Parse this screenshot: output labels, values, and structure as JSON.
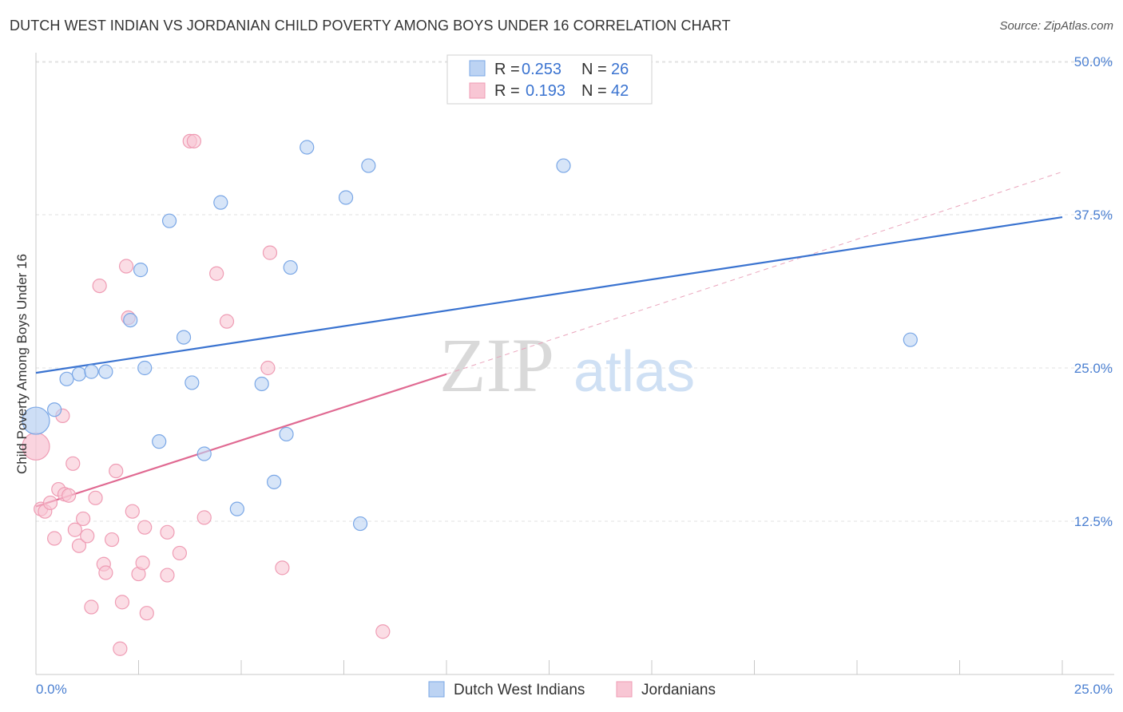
{
  "header": {
    "title": "DUTCH WEST INDIAN VS JORDANIAN CHILD POVERTY AMONG BOYS UNDER 16 CORRELATION CHART",
    "source": "Source: ZipAtlas.com"
  },
  "watermark": {
    "zip": "ZIP",
    "atlas": "atlas"
  },
  "legend": {
    "rows": [
      {
        "r_label": "R = ",
        "r_value": "0.253",
        "n_label": "N = ",
        "n_value": "26"
      },
      {
        "r_label": "R = ",
        "r_value": "0.193",
        "n_label": "N = ",
        "n_value": "42"
      }
    ]
  },
  "chart_data": {
    "type": "scatter",
    "title": "DUTCH WEST INDIAN VS JORDANIAN CHILD POVERTY AMONG BOYS UNDER 16 CORRELATION CHART",
    "xlabel": "",
    "ylabel": "Child Poverty Among Boys Under 16",
    "xlim": [
      0,
      25
    ],
    "ylim": [
      0,
      52
    ],
    "x_tick_labels": [
      "0.0%",
      "25.0%"
    ],
    "y_ticks": [
      12.5,
      25.0,
      37.5,
      50.0
    ],
    "y_tick_labels": [
      "12.5%",
      "25.0%",
      "37.5%",
      "50.0%"
    ],
    "grid": true,
    "legend_position": "top-center",
    "series": [
      {
        "name": "Dutch West Indians",
        "color": "#7aa7e6",
        "fill": "#bcd3f3",
        "r": 0.253,
        "n": 26,
        "trend": {
          "x": [
            0,
            25
          ],
          "y": [
            24.6,
            37.3
          ],
          "color": "#3a73d0"
        },
        "points": [
          {
            "x": 0.0,
            "y": 20.7,
            "big": true
          },
          {
            "x": 0.45,
            "y": 21.6
          },
          {
            "x": 0.75,
            "y": 24.1
          },
          {
            "x": 1.05,
            "y": 24.5
          },
          {
            "x": 1.35,
            "y": 24.7
          },
          {
            "x": 1.7,
            "y": 24.7
          },
          {
            "x": 2.55,
            "y": 33.0
          },
          {
            "x": 2.3,
            "y": 28.9
          },
          {
            "x": 2.65,
            "y": 25.0
          },
          {
            "x": 3.0,
            "y": 19.0
          },
          {
            "x": 3.25,
            "y": 37.0
          },
          {
            "x": 3.6,
            "y": 27.5
          },
          {
            "x": 3.8,
            "y": 23.8
          },
          {
            "x": 4.1,
            "y": 18.0
          },
          {
            "x": 4.5,
            "y": 38.5
          },
          {
            "x": 4.9,
            "y": 13.5
          },
          {
            "x": 5.5,
            "y": 23.7
          },
          {
            "x": 5.8,
            "y": 15.7
          },
          {
            "x": 6.1,
            "y": 19.6
          },
          {
            "x": 6.2,
            "y": 33.2
          },
          {
            "x": 6.6,
            "y": 43.0
          },
          {
            "x": 7.55,
            "y": 38.9
          },
          {
            "x": 7.9,
            "y": 12.3
          },
          {
            "x": 8.1,
            "y": 41.5
          },
          {
            "x": 12.85,
            "y": 41.5
          },
          {
            "x": 21.3,
            "y": 27.3
          }
        ]
      },
      {
        "name": "Jordanians",
        "color": "#ef9cb4",
        "fill": "#f8c6d4",
        "r": 0.193,
        "n": 42,
        "trend": {
          "x": [
            0,
            10
          ],
          "y": [
            13.7,
            24.5
          ],
          "color": "#e06a92"
        },
        "trend_extension": {
          "x": [
            10,
            25
          ],
          "y": [
            24.5,
            41.0
          ]
        },
        "points": [
          {
            "x": 0.0,
            "y": 18.6,
            "big": true
          },
          {
            "x": 0.12,
            "y": 13.5
          },
          {
            "x": 0.22,
            "y": 13.3
          },
          {
            "x": 0.35,
            "y": 14.0
          },
          {
            "x": 0.45,
            "y": 11.1
          },
          {
            "x": 0.55,
            "y": 15.1
          },
          {
            "x": 0.65,
            "y": 21.1
          },
          {
            "x": 0.7,
            "y": 14.7
          },
          {
            "x": 0.8,
            "y": 14.6
          },
          {
            "x": 0.9,
            "y": 17.2
          },
          {
            "x": 0.95,
            "y": 11.8
          },
          {
            "x": 1.05,
            "y": 10.5
          },
          {
            "x": 1.15,
            "y": 12.7
          },
          {
            "x": 1.25,
            "y": 11.3
          },
          {
            "x": 1.35,
            "y": 5.5
          },
          {
            "x": 1.45,
            "y": 14.4
          },
          {
            "x": 1.55,
            "y": 31.7
          },
          {
            "x": 1.65,
            "y": 9.0
          },
          {
            "x": 1.7,
            "y": 8.3
          },
          {
            "x": 1.85,
            "y": 11.0
          },
          {
            "x": 1.95,
            "y": 16.6
          },
          {
            "x": 2.1,
            "y": 5.9
          },
          {
            "x": 2.05,
            "y": 2.1
          },
          {
            "x": 2.2,
            "y": 33.3
          },
          {
            "x": 2.25,
            "y": 29.1
          },
          {
            "x": 2.35,
            "y": 13.3
          },
          {
            "x": 2.5,
            "y": 8.2
          },
          {
            "x": 2.6,
            "y": 9.1
          },
          {
            "x": 2.65,
            "y": 12.0
          },
          {
            "x": 2.7,
            "y": 5.0
          },
          {
            "x": 3.2,
            "y": 11.6
          },
          {
            "x": 3.2,
            "y": 8.1
          },
          {
            "x": 3.5,
            "y": 9.9
          },
          {
            "x": 3.75,
            "y": 43.5
          },
          {
            "x": 3.85,
            "y": 43.5
          },
          {
            "x": 4.1,
            "y": 12.8
          },
          {
            "x": 4.4,
            "y": 32.7
          },
          {
            "x": 4.65,
            "y": 28.8
          },
          {
            "x": 5.65,
            "y": 25.0
          },
          {
            "x": 5.7,
            "y": 34.4
          },
          {
            "x": 6.0,
            "y": 8.7
          },
          {
            "x": 8.45,
            "y": 3.5
          }
        ]
      }
    ]
  }
}
